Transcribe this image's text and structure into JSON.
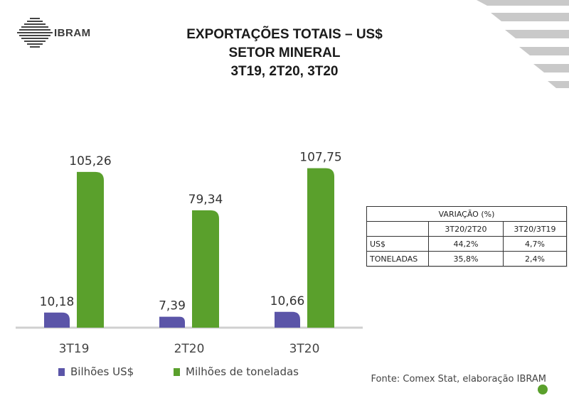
{
  "header": {
    "logo_text": "IBRAM",
    "title_lines": [
      "EXPORTAÇÕES TOTAIS – US$",
      "SETOR MINERAL",
      "3T19, 2T20, 3T20"
    ]
  },
  "chart_data": {
    "type": "bar",
    "categories": [
      "3T19",
      "2T20",
      "3T20"
    ],
    "series": [
      {
        "name": "Bilhões US$",
        "values": [
          10.18,
          7.39,
          10.66
        ],
        "labels": [
          "10,18",
          "7,39",
          "10,66"
        ],
        "color": "#5b55a8"
      },
      {
        "name": "Milhões de toneladas",
        "values": [
          105.26,
          79.34,
          107.75
        ],
        "labels": [
          "105,26",
          "79,34",
          "107,75"
        ],
        "color": "#5aa02c"
      }
    ],
    "title": "",
    "xlabel": "",
    "ylabel": "",
    "ylim": [
      0,
      110
    ],
    "grid": false,
    "legend_position": "bottom-left"
  },
  "variation_table": {
    "title": "VARIAÇÃO (%)",
    "columns": [
      "3T20/2T20",
      "3T20/3T19"
    ],
    "rows": [
      {
        "label": "US$",
        "values": [
          "44,2%",
          "4,7%"
        ]
      },
      {
        "label": "TONELADAS",
        "values": [
          "35,8%",
          "2,4%"
        ]
      }
    ]
  },
  "source": "Fonte: Comex Stat, elaboração IBRAM",
  "colors": {
    "accent_green": "#5aa02c",
    "accent_purple": "#5b55a8"
  }
}
